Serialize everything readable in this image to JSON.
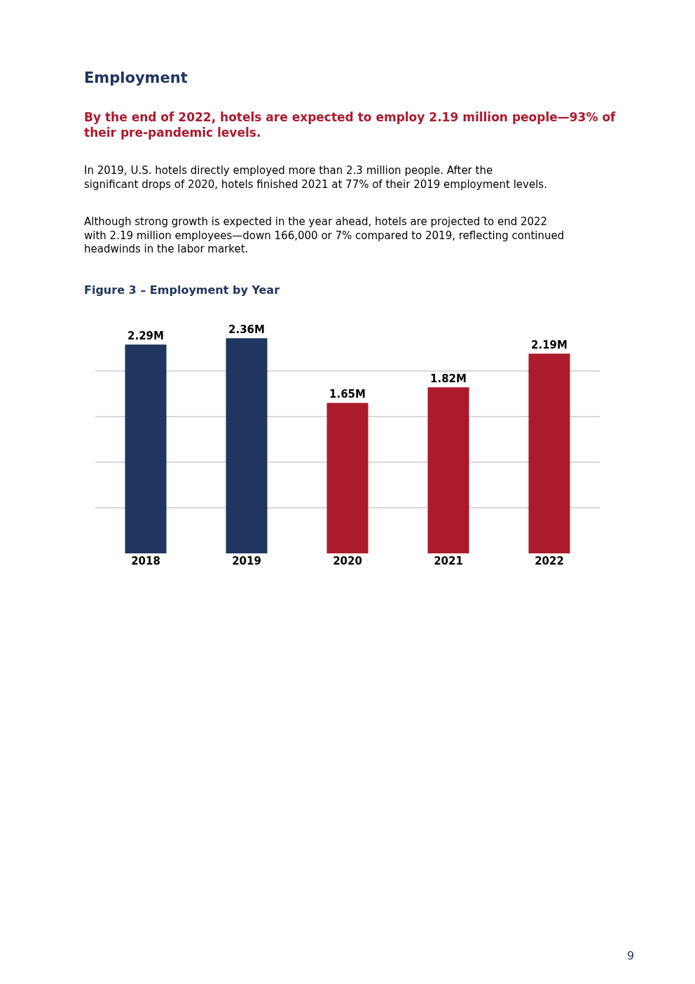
{
  "chart_data": {
    "type": "bar",
    "title": "Employment",
    "subtitle": "By the end of 2022, hotels are expected to employ 2.19 million people—93% of their pre-pandemic levels.",
    "annotations": [
      "In 2019, U.S. hotels directly employed more than 2.3 million people. After the significant drops of 2020, hotels finished 2021 at 77% of their 2019 employment levels.",
      "Although strong growth is expected in the year ahead, hotels are projected to end 2022 with 2.19 million employees—down 166,000 or 7% compared to 2019, reflecting continued headwinds in the labor market.",
      "Figure 3 – Employment by Year",
      "9"
    ],
    "categories": [
      "2018",
      "2019",
      "2020",
      "2021",
      "2022"
    ],
    "values": [
      2.29,
      2.36,
      1.65,
      1.82,
      2.19
    ],
    "value_labels": [
      "2.29M",
      "2.36M",
      "1.65M",
      "1.82M",
      "2.19M"
    ],
    "colors": [
      "#20355f",
      "#20355f",
      "#ab1a2d",
      "#ab1a2d",
      "#ab1a2d"
    ],
    "grid": "y",
    "tick_labels": "x"
  }
}
